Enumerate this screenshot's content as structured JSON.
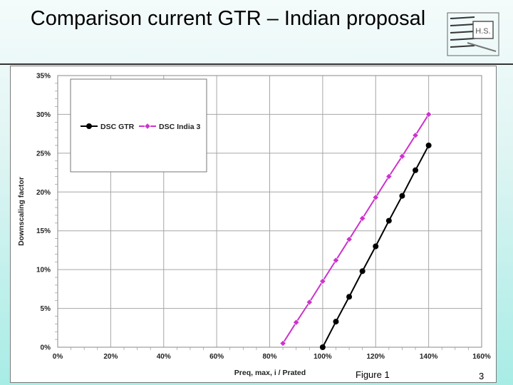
{
  "slide": {
    "title": "Comparison current GTR – Indian proposal",
    "figure_label": "Figure 1",
    "page_number": "3",
    "logo_text": "H.S."
  },
  "colors": {
    "series_gtr": "#000000",
    "series_india": "#cc33cc",
    "grid": "#a6a6a6",
    "background_gradient_bottom": "#a8ece6"
  },
  "chart_data": {
    "type": "line",
    "title": "",
    "xlabel": "Preq, max, i / Prated",
    "ylabel": "Downscaling factor",
    "xlim": [
      0,
      160
    ],
    "ylim": [
      0,
      35
    ],
    "x_ticks": [
      "0%",
      "20%",
      "40%",
      "60%",
      "80%",
      "100%",
      "120%",
      "140%",
      "160%"
    ],
    "y_ticks": [
      "0%",
      "5%",
      "10%",
      "15%",
      "20%",
      "25%",
      "30%",
      "35%"
    ],
    "grid": true,
    "legend_position": "top-left",
    "series": [
      {
        "name": "DSC GTR",
        "marker": "circle",
        "x": [
          100,
          105,
          110,
          115,
          120,
          125,
          130,
          135,
          140
        ],
        "y": [
          0,
          3.3,
          6.5,
          9.8,
          13.0,
          16.3,
          19.5,
          22.8,
          26.0
        ]
      },
      {
        "name": "DSC India 3",
        "marker": "diamond",
        "x": [
          85,
          90,
          95,
          100,
          105,
          110,
          115,
          120,
          125,
          130,
          135,
          140
        ],
        "y": [
          0.5,
          3.2,
          5.8,
          8.5,
          11.2,
          13.9,
          16.6,
          19.3,
          22.0,
          24.6,
          27.3,
          30.0
        ]
      }
    ]
  }
}
